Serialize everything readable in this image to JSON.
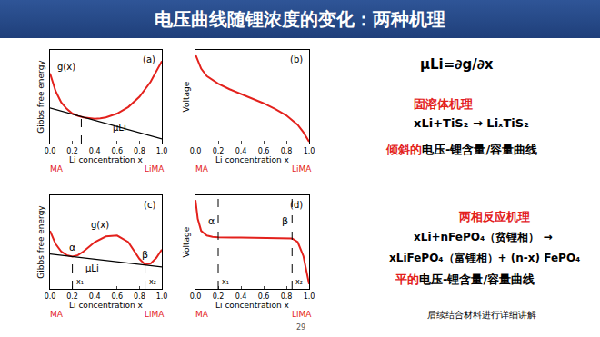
{
  "slide": {
    "title": "电压曲线随锂浓度的变化：两种机理",
    "page": "29",
    "footer": "后续结合材料进行详细讲解",
    "right_text": [
      {
        "segments": [
          {
            "text": "μLi=∂g/∂x"
          }
        ]
      },
      {
        "segments": [
          {
            "text": "固溶体机理",
            "color": "#e3211c"
          }
        ]
      },
      {
        "segments": [
          {
            "text": "xLi+TiS₂ → LiₓTiS₂"
          }
        ]
      },
      {
        "segments": [
          {
            "text": "倾斜的",
            "color": "#e3211c"
          },
          {
            "text": "电压-锂含量/容量曲线"
          }
        ]
      },
      {
        "segments": [
          {
            "text": "两相反应机理",
            "color": "#e3211c"
          }
        ]
      },
      {
        "segments": [
          {
            "text": "xLi+nFePO₄（贫锂相） →"
          }
        ]
      },
      {
        "segments": [
          {
            "text": "xLiFePO₄（富锂相）+ (n-x) FePO₄"
          }
        ]
      },
      {
        "segments": [
          {
            "text": "平的",
            "color": "#e3211c"
          },
          {
            "text": "电压-锂含量/容量曲线"
          }
        ]
      }
    ]
  },
  "chart_data": [
    {
      "type": "line",
      "panel": "(a)",
      "xlabel": "Li concentration x",
      "x_end_labels": [
        "MA",
        "LiMA"
      ],
      "ylabel": "Gibbs free energy",
      "xlim": [
        0,
        1
      ],
      "ylim": [
        0,
        1
      ],
      "tick_labels": "x",
      "xticks": [
        {
          "value": 0,
          "label": "0.0"
        },
        0.2,
        0.4,
        0.6,
        0.8,
        {
          "value": 1,
          "label": "1.0"
        }
      ],
      "series": [
        {
          "name": "g(x)",
          "color": "#e3211c",
          "line_style": "solid",
          "x": [
            0,
            0.05,
            0.1,
            0.15,
            0.2,
            0.25,
            0.3,
            0.35,
            0.4,
            0.45,
            0.5,
            0.6,
            0.7,
            0.8,
            0.9,
            1
          ],
          "values": [
            0.75,
            0.56,
            0.44,
            0.37,
            0.32,
            0.295,
            0.28,
            0.27,
            0.265,
            0.27,
            0.28,
            0.32,
            0.39,
            0.5,
            0.66,
            0.88
          ]
        },
        {
          "name": "μLi",
          "color": "#000000",
          "line_style": "solid",
          "x": [
            0,
            1
          ],
          "values": [
            0.38,
            0.05
          ]
        }
      ],
      "guides": [
        {
          "x": 0.28,
          "y": 0.285
        }
      ]
    },
    {
      "type": "line",
      "panel": "(b)",
      "xlabel": "Li concentration x",
      "x_end_labels": [
        "MA",
        "LiMA"
      ],
      "ylabel": "Voltage",
      "xlim": [
        0,
        1
      ],
      "ylim": [
        0,
        1
      ],
      "tick_labels": "x",
      "xticks": [
        {
          "value": 0,
          "label": "0.0"
        },
        0.2,
        0.4,
        0.6,
        0.8,
        {
          "value": 1,
          "label": "1.0"
        }
      ],
      "series": [
        {
          "color": "#e3211c",
          "line_style": "solid",
          "x": [
            0,
            0.05,
            0.1,
            0.2,
            0.3,
            0.4,
            0.5,
            0.6,
            0.7,
            0.8,
            0.9,
            0.95,
            1
          ],
          "values": [
            0.95,
            0.8,
            0.72,
            0.64,
            0.58,
            0.53,
            0.48,
            0.43,
            0.37,
            0.3,
            0.2,
            0.12,
            0.02
          ]
        }
      ]
    },
    {
      "type": "line",
      "panel": "(c)",
      "xlabel": "Li concentration x",
      "x_end_labels": [
        "MA",
        "LiMA"
      ],
      "ylabel": "Gibbs free energy",
      "xlim": [
        0,
        1
      ],
      "ylim": [
        0,
        1
      ],
      "tick_labels": "x",
      "xticks": [
        {
          "value": 0,
          "label": "0.0"
        },
        0.2,
        0.4,
        0.6,
        0.8,
        {
          "value": 1,
          "label": "1.0"
        }
      ],
      "series": [
        {
          "name": "g(x)",
          "color": "#e3211c",
          "line_style": "solid",
          "x": [
            0,
            0.05,
            0.1,
            0.15,
            0.2,
            0.25,
            0.3,
            0.4,
            0.5,
            0.6,
            0.7,
            0.8,
            0.85,
            0.9,
            0.95,
            1
          ],
          "values": [
            0.62,
            0.48,
            0.4,
            0.36,
            0.345,
            0.36,
            0.4,
            0.5,
            0.56,
            0.57,
            0.5,
            0.32,
            0.26,
            0.27,
            0.33,
            0.42
          ]
        },
        {
          "name": "μLi",
          "color": "#000000",
          "line_style": "solid",
          "x": [
            0,
            1
          ],
          "values": [
            0.373,
            0.235
          ]
        }
      ],
      "guides": [
        {
          "x": 0.2,
          "y": 0.345,
          "label": "α",
          "axis_label": "x₁"
        },
        {
          "x": 0.85,
          "y": 0.26,
          "label": "β",
          "axis_label": "x₂"
        }
      ]
    },
    {
      "type": "line",
      "panel": "(d)",
      "xlabel": "Li concentration x",
      "x_end_labels": [
        "MA",
        "LiMA"
      ],
      "ylabel": "Voltage",
      "xlim": [
        0,
        1
      ],
      "ylim": [
        0,
        1
      ],
      "tick_labels": "x",
      "xticks": [
        {
          "value": 0,
          "label": "0.0"
        },
        0.2,
        0.4,
        0.6,
        0.8,
        {
          "value": 1,
          "label": "1.0"
        }
      ],
      "series": [
        {
          "color": "#e3211c",
          "line_style": "solid",
          "x": [
            0,
            0.02,
            0.05,
            0.1,
            0.15,
            0.2,
            0.4,
            0.6,
            0.8,
            0.85,
            0.9,
            0.95,
            1
          ],
          "values": [
            0.95,
            0.75,
            0.62,
            0.57,
            0.555,
            0.55,
            0.548,
            0.545,
            0.542,
            0.54,
            0.5,
            0.35,
            0.05
          ]
        }
      ],
      "guides": [
        {
          "x": 0.2,
          "y": 1,
          "label": "α",
          "axis_label": "x₁"
        },
        {
          "x": 0.85,
          "y": 1,
          "label": "β",
          "axis_label": "x₂"
        }
      ]
    }
  ]
}
